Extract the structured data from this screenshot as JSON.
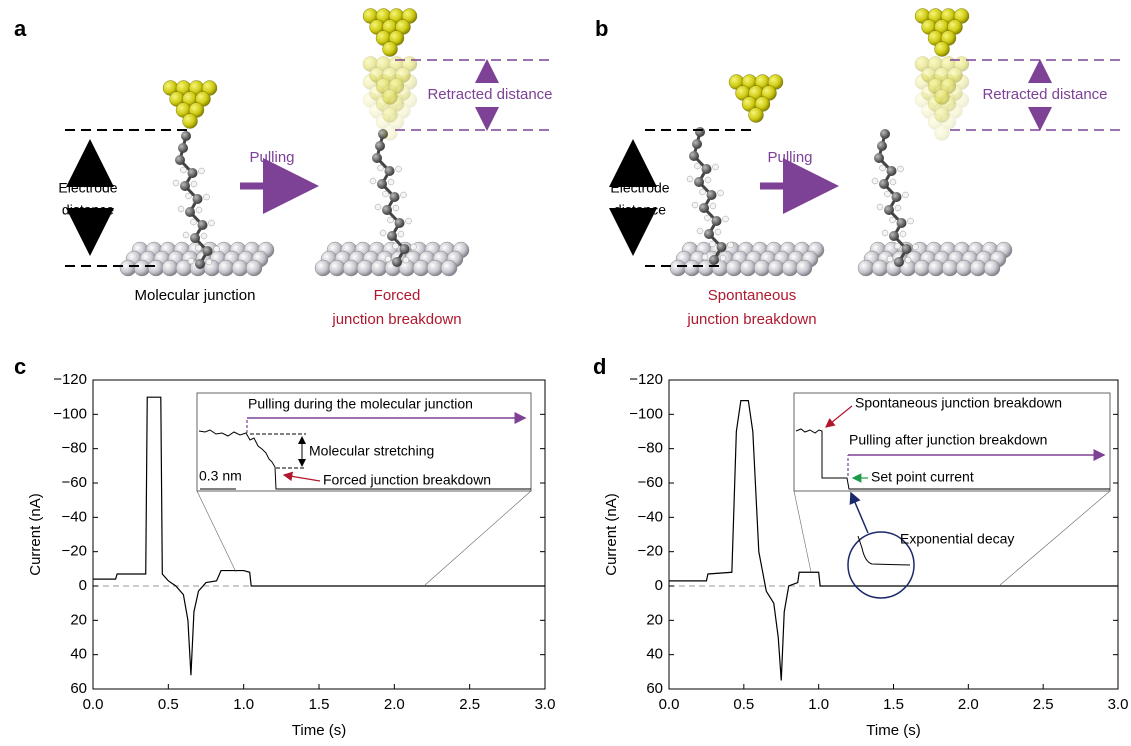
{
  "panels": {
    "a": {
      "label": "a",
      "electrode_label": [
        "Electrode",
        "distance"
      ],
      "arrow_label": "Pulling",
      "left_caption": [
        "Molecular junction"
      ],
      "right_caption": [
        "Forced",
        "junction breakdown"
      ],
      "retract_label": "Retracted distance"
    },
    "b": {
      "label": "b",
      "electrode_label": [
        "Electrode",
        "distance"
      ],
      "arrow_label": "Pulling",
      "left_caption": [
        "Spontaneous",
        "junction breakdown"
      ],
      "retract_label": "Retracted distance"
    }
  },
  "chart_data": [
    {
      "type": "line",
      "panel_label": "c",
      "x_label": "Time (s)",
      "y_label": "Current (nA)",
      "xlim": [
        0,
        3
      ],
      "ylim": [
        60,
        -120
      ],
      "xticks": [
        {
          "value": 0,
          "label": "0.0"
        },
        0.5,
        {
          "value": 1,
          "label": "1.0"
        },
        1.5,
        {
          "value": 2,
          "label": "2.0"
        },
        2.5,
        {
          "value": 3,
          "label": "3.0"
        }
      ],
      "yticks": [
        {
          "value": -120,
          "label": "−120"
        },
        {
          "value": -100,
          "label": "−100"
        },
        {
          "value": -80,
          "label": "−80"
        },
        {
          "value": -60,
          "label": "−60"
        },
        {
          "value": -40,
          "label": "−40"
        },
        {
          "value": -20,
          "label": "−20"
        },
        0,
        20,
        40,
        60
      ],
      "reference_line": 0,
      "series": [
        {
          "color": "#000000",
          "x": [
            0,
            0.15,
            0.16,
            0.35,
            0.36,
            0.45,
            0.46,
            0.5,
            0.55,
            0.6,
            0.63,
            0.65,
            0.67,
            0.7,
            0.75,
            0.82,
            0.85,
            1.0,
            1.04,
            1.05,
            3.0
          ],
          "values": [
            -4,
            -4,
            -7,
            -7,
            -110,
            -110,
            -7,
            -3,
            0,
            5,
            20,
            52,
            15,
            3,
            -2,
            -3,
            -9,
            -9,
            -8,
            0,
            0
          ]
        }
      ],
      "annotations": [
        {
          "text": "Pulling during the molecular junction",
          "color": "#7d4196"
        },
        {
          "text": "Molecular stretching",
          "color": "#000000"
        },
        {
          "text": "Forced junction breakdown",
          "color": "#b0182e"
        },
        {
          "text": "0.3 nm",
          "color": "#808080"
        }
      ]
    },
    {
      "type": "line",
      "panel_label": "d",
      "x_label": "Time (s)",
      "y_label": "Current (nA)",
      "xlim": [
        0,
        3
      ],
      "ylim": [
        60,
        -120
      ],
      "xticks": [
        {
          "value": 0,
          "label": "0.0"
        },
        0.5,
        {
          "value": 1,
          "label": "1.0"
        },
        1.5,
        {
          "value": 2,
          "label": "2.0"
        },
        2.5,
        {
          "value": 3,
          "label": "3.0"
        }
      ],
      "yticks": [
        {
          "value": -120,
          "label": "−120"
        },
        {
          "value": -100,
          "label": "−100"
        },
        {
          "value": -80,
          "label": "−80"
        },
        {
          "value": -60,
          "label": "−60"
        },
        {
          "value": -40,
          "label": "−40"
        },
        {
          "value": -20,
          "label": "−20"
        },
        0,
        20,
        40,
        60
      ],
      "reference_line": 0,
      "series": [
        {
          "color": "#000000",
          "x": [
            0,
            0.25,
            0.26,
            0.42,
            0.45,
            0.48,
            0.5,
            0.53,
            0.56,
            0.6,
            0.65,
            0.7,
            0.73,
            0.75,
            0.77,
            0.8,
            0.86,
            0.87,
            1.0,
            1.01,
            3.0
          ],
          "values": [
            -3,
            -3,
            -7,
            -8,
            -90,
            -108,
            -108,
            -108,
            -90,
            -20,
            3,
            10,
            30,
            55,
            15,
            0,
            -2,
            -8,
            -8,
            0,
            0
          ]
        }
      ],
      "annotations": [
        {
          "text": "Spontaneous junction breakdown",
          "color": "#b0182e"
        },
        {
          "text": "Pulling after junction breakdown",
          "color": "#7d4196"
        },
        {
          "text": "Set point current",
          "color": "#1e9a4a"
        },
        {
          "text": "Exponential decay",
          "color": "#1b2a6b"
        }
      ]
    }
  ]
}
